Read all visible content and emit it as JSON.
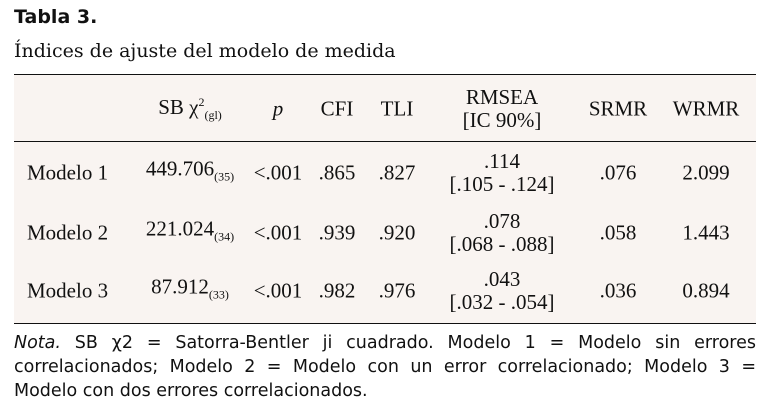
{
  "title": "Tabla 3.",
  "subtitle": "Índices de ajuste del modelo de medida",
  "headers": {
    "chi": "SB χ",
    "chi_sup": "2",
    "chi_sub": "(gl)",
    "p": "p",
    "cfi": "CFI",
    "tli": "TLI",
    "rmsea": "RMSEA",
    "rmsea_ci": "[IC 90%]",
    "srmr": "SRMR",
    "wrmr": "WRMR"
  },
  "rows": [
    {
      "label": "Modelo 1",
      "chi": "449.706",
      "gl": "(35)",
      "p": "<.001",
      "cfi": ".865",
      "tli": ".827",
      "rmsea": ".114",
      "ci": "[.105 - .124]",
      "srmr": ".076",
      "wrmr": "2.099"
    },
    {
      "label": "Modelo 2",
      "chi": "221.024",
      "gl": "(34)",
      "p": "<.001",
      "cfi": ".939",
      "tli": ".920",
      "rmsea": ".078",
      "ci": "[.068 - .088]",
      "srmr": ".058",
      "wrmr": "1.443"
    },
    {
      "label": "Modelo 3",
      "chi": "87.912",
      "gl": "(33)",
      "p": "<.001",
      "cfi": ".982",
      "tli": ".976",
      "rmsea": ".043",
      "ci": "[.032 - .054]",
      "srmr": ".036",
      "wrmr": "0.894"
    }
  ],
  "note": {
    "label": "Nota.",
    "text": " SB χ2 = Satorra-Bentler ji cuadrado. Modelo 1 = Modelo sin errores correlacionados; Modelo 2 = Modelo con un error correlacionado; Modelo 3 = Modelo con dos errores correlacionados."
  }
}
